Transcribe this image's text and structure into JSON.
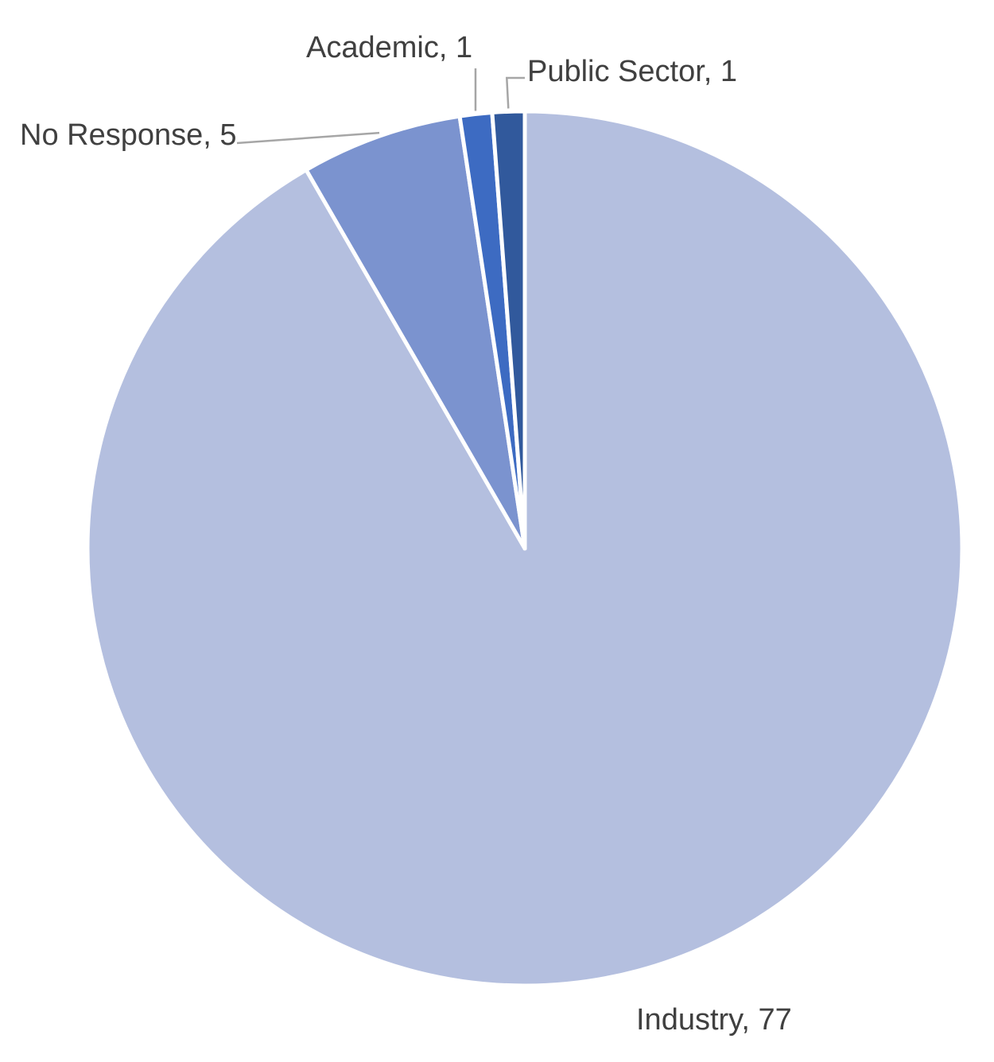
{
  "chart_data": {
    "type": "pie",
    "categories": [
      "Industry",
      "No Response",
      "Academic",
      "Public Sector"
    ],
    "values": [
      77,
      5,
      1,
      1
    ],
    "labels": [
      "Industry, 77",
      "No Response, 5",
      "Academic, 1",
      "Public Sector, 1"
    ],
    "colors": [
      "#b4bfdf",
      "#7b93cf",
      "#3d6bc2",
      "#31599c"
    ],
    "start_angle_deg": 0,
    "direction": "clockwise",
    "legend": "none",
    "title": ""
  }
}
